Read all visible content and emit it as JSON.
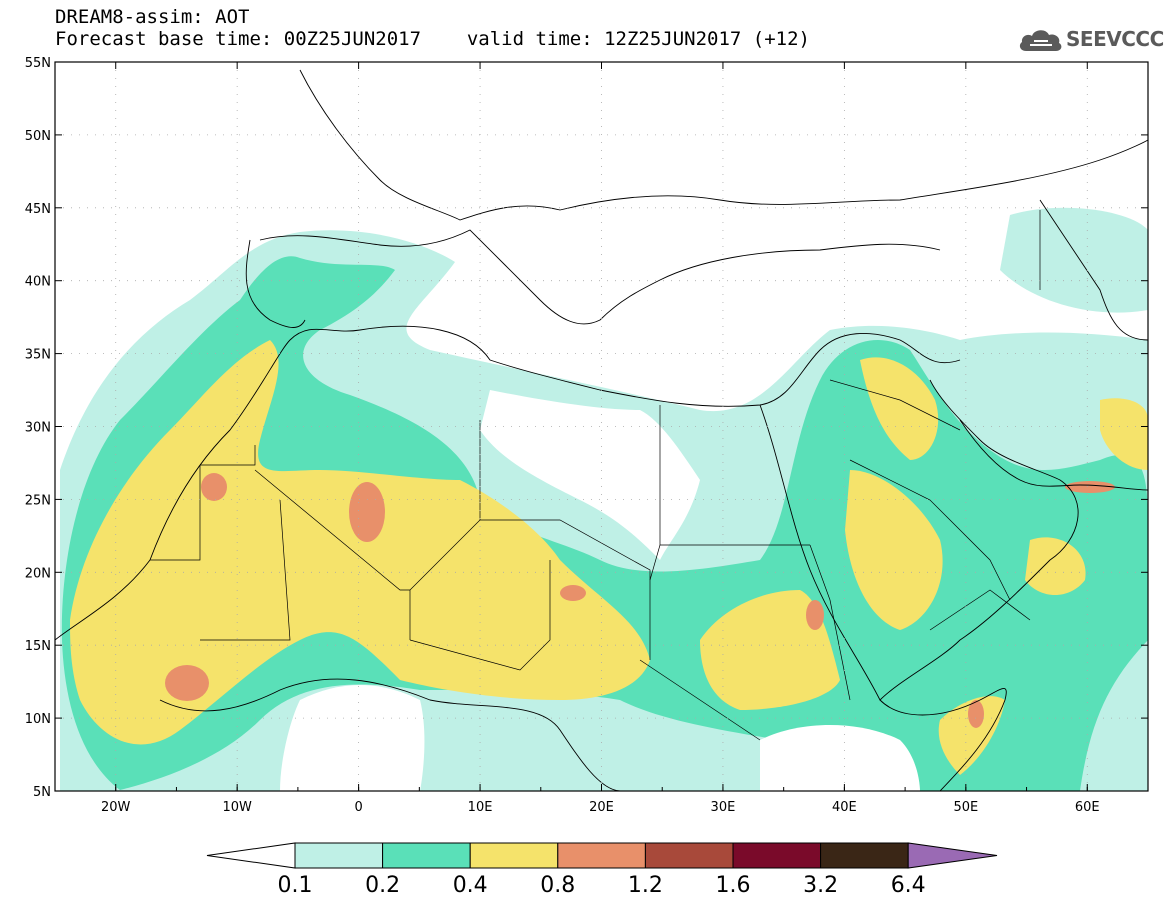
{
  "header": {
    "line1": "DREAM8-assim: AOT",
    "line2_base": "Forecast base time: 00Z25JUN2017",
    "line2_valid": "valid time: 12Z25JUN2017 (+12)"
  },
  "logo": {
    "text": "SEEVCCC",
    "icon": "cloud-icon",
    "color": "#5a5a5a"
  },
  "map": {
    "lon_range": [
      -25,
      65
    ],
    "lat_range": [
      5,
      55
    ],
    "lat_ticks": [
      "55N",
      "50N",
      "45N",
      "40N",
      "35N",
      "30N",
      "25N",
      "20N",
      "15N",
      "10N",
      "5N"
    ],
    "lon_ticks": [
      "20W",
      "10W",
      "0",
      "10E",
      "20E",
      "30E",
      "40E",
      "50E",
      "60E"
    ]
  },
  "colorbar": {
    "levels": [
      "0.1",
      "0.2",
      "0.4",
      "0.8",
      "1.2",
      "1.6",
      "3.2",
      "6.4"
    ],
    "colors": [
      "#bff0e6",
      "#5ae0b8",
      "#f5e36b",
      "#e8906a",
      "#a8493a",
      "#7a0a2a",
      "#3a2616",
      "#9a6ab4"
    ],
    "under_color": "#ffffff",
    "over_color": "#9a6ab4"
  }
}
